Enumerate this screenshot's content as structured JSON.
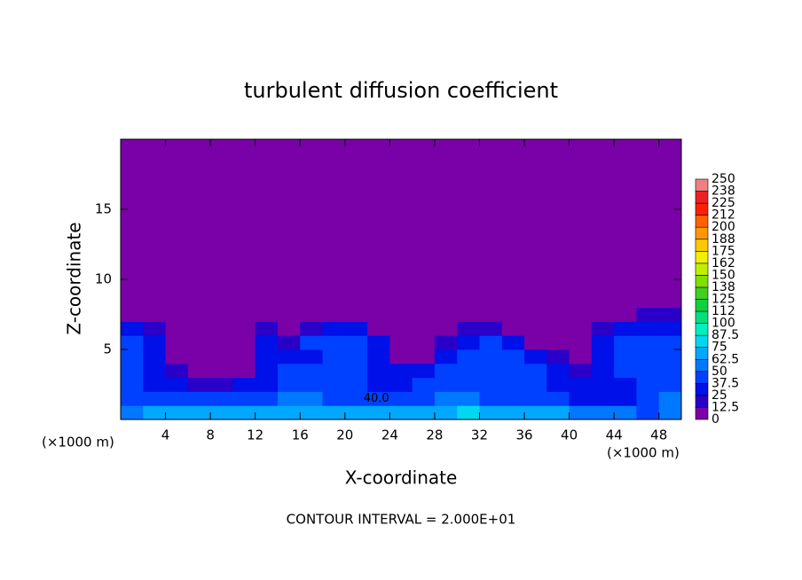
{
  "chart_data": {
    "type": "contourf",
    "title": "turbulent diffusion coefficient",
    "x_label": "X-coordinate",
    "y_label": "Z-coordinate",
    "x_unit": "(×1000 m)",
    "y_unit": "(×1000 m)",
    "footer": "CONTOUR INTERVAL = 2.000E+01",
    "annotation": "40.0",
    "xlim": [
      0,
      50
    ],
    "ylim": [
      0,
      20
    ],
    "xticks": [
      4,
      8,
      12,
      16,
      20,
      24,
      28,
      32,
      36,
      40,
      44,
      48
    ],
    "yticks": [
      5,
      10,
      15
    ],
    "x_edges": [
      0,
      2,
      4,
      6,
      8,
      10,
      12,
      14,
      16,
      18,
      20,
      22,
      24,
      26,
      28,
      30,
      32,
      34,
      36,
      38,
      40,
      42,
      44,
      46,
      48,
      50
    ],
    "z_edges": [
      0,
      1,
      2,
      3,
      4,
      5,
      6,
      7,
      8,
      20
    ],
    "values": [
      [
        62,
        65,
        70,
        68,
        70,
        72,
        70,
        65,
        68,
        72,
        70,
        68,
        65,
        70,
        72,
        75,
        70,
        65,
        70,
        68,
        62,
        55,
        50,
        45,
        60
      ],
      [
        45,
        40,
        40,
        42,
        45,
        40,
        42,
        50,
        55,
        45,
        45,
        40,
        40,
        45,
        55,
        60,
        45,
        40,
        45,
        40,
        35,
        30,
        35,
        40,
        50
      ],
      [
        40,
        35,
        30,
        20,
        20,
        25,
        30,
        40,
        45,
        40,
        40,
        35,
        35,
        40,
        45,
        40,
        40,
        40,
        45,
        35,
        30,
        30,
        35,
        40,
        45
      ],
      [
        40,
        35,
        20,
        10,
        5,
        10,
        35,
        40,
        40,
        40,
        40,
        35,
        30,
        30,
        45,
        40,
        40,
        40,
        40,
        30,
        20,
        35,
        40,
        40,
        45
      ],
      [
        40,
        30,
        5,
        0,
        0,
        5,
        30,
        35,
        35,
        40,
        40,
        35,
        10,
        5,
        35,
        40,
        40,
        40,
        35,
        15,
        10,
        35,
        40,
        40,
        45
      ],
      [
        40,
        25,
        0,
        0,
        0,
        10,
        35,
        20,
        40,
        40,
        40,
        35,
        5,
        0,
        20,
        35,
        40,
        35,
        10,
        0,
        5,
        35,
        40,
        40,
        40
      ],
      [
        35,
        15,
        0,
        0,
        0,
        5,
        20,
        10,
        20,
        35,
        25,
        10,
        0,
        0,
        10,
        20,
        20,
        10,
        0,
        0,
        5,
        20,
        30,
        35,
        35
      ],
      [
        10,
        0,
        0,
        0,
        0,
        0,
        0,
        0,
        0,
        5,
        0,
        0,
        0,
        0,
        0,
        0,
        0,
        0,
        0,
        0,
        0,
        5,
        10,
        15,
        15
      ],
      [
        0,
        0,
        0,
        0,
        0,
        0,
        0,
        0,
        0,
        0,
        0,
        0,
        0,
        0,
        0,
        0,
        0,
        0,
        0,
        0,
        0,
        0,
        0,
        0,
        0
      ]
    ],
    "colorbar": {
      "levels": [
        0,
        12.5,
        25,
        37.5,
        50,
        62.5,
        75,
        87.5,
        100,
        {
          "value": 112.5,
          "label": "112"
        },
        125,
        {
          "value": 137.5,
          "label": "138"
        },
        150,
        {
          "value": 162.5,
          "label": "162"
        },
        175,
        {
          "value": 187.5,
          "label": "188"
        },
        200,
        {
          "value": 212.5,
          "label": "212"
        },
        225,
        {
          "value": 237.5,
          "label": "238"
        },
        250
      ],
      "colors": [
        "#7a00a8",
        "#2a00c8",
        "#0010e8",
        "#0040ff",
        "#0078ff",
        "#00a8ff",
        "#00d8f0",
        "#00f0c0",
        "#00e080",
        "#10d040",
        "#40d020",
        "#80e000",
        "#c0f000",
        "#f0f000",
        "#ffc800",
        "#ff9800",
        "#ff6000",
        "#ff2000",
        "#f02020",
        "#f08080"
      ]
    }
  }
}
